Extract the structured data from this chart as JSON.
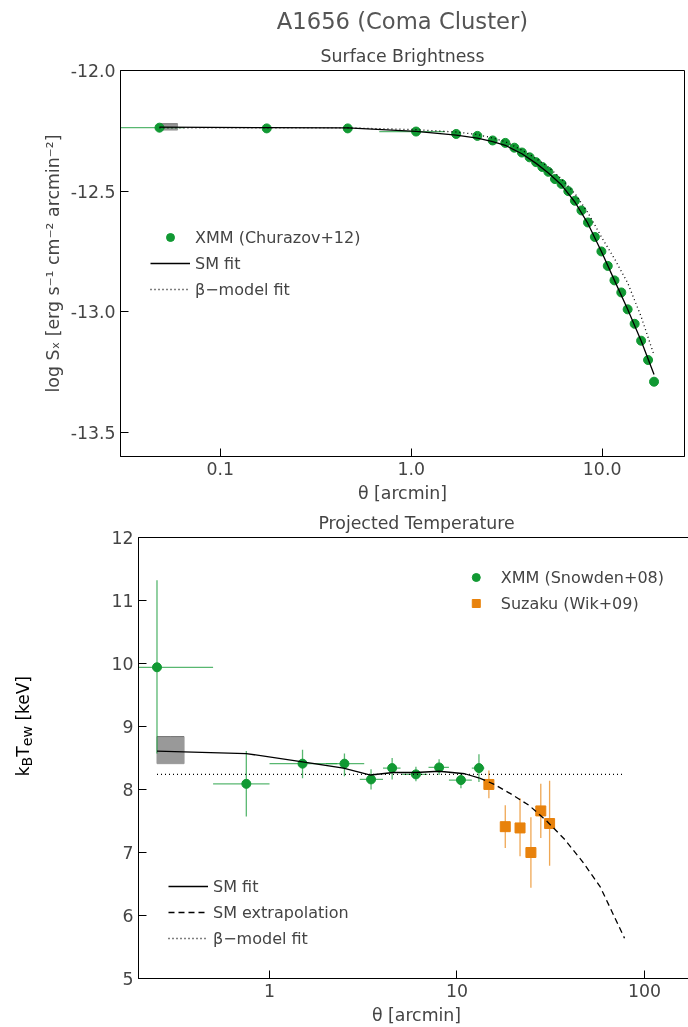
{
  "chart_data": [
    {
      "type": "scatter",
      "title": "A1656 (Coma Cluster)",
      "subtitle": "Surface Brightness",
      "xlabel": "θ [arcmin]",
      "ylabel": "log Sₓ [erg s⁻¹ cm⁻² arcmin⁻²]",
      "log": "x",
      "xlim": [
        0.03,
        27
      ],
      "ylim": [
        -13.6,
        -12.0
      ],
      "xticks": [
        0.1,
        {
          "value": 1,
          "label": "1.0"
        },
        {
          "value": 10,
          "label": "10.0"
        }
      ],
      "yticks": [
        {
          "value": -12,
          "label": "-12.0"
        },
        -12.5,
        {
          "value": -13,
          "label": "-13.0"
        },
        -13.5
      ],
      "grid": false,
      "legend": "left",
      "series": [
        {
          "type": "bar",
          "color": "#999999",
          "x": [
            0.0538
          ],
          "base": [
            -12.247
          ],
          "values": [
            0.026
          ],
          "xerrors": [
            [
              0.0485,
              0.0597
            ]
          ]
        },
        {
          "name": "XMM (Churazov+12)",
          "color": "#119933",
          "marker": "circle",
          "x": [
            0.048,
            0.175,
            0.465,
            1.06,
            1.72,
            2.22,
            2.67,
            3.11,
            3.47,
            3.8,
            4.17,
            4.51,
            4.86,
            5.23,
            5.66,
            6.13,
            6.65,
            7.2,
            7.79,
            8.43,
            9.16,
            9.91,
            10.7,
            11.6,
            12.6,
            13.6,
            14.8,
            16.0,
            17.4,
            18.7
          ],
          "values": [
            -12.237,
            -12.24,
            -12.24,
            -12.253,
            -12.263,
            -12.271,
            -12.29,
            -12.3,
            -12.32,
            -12.34,
            -12.36,
            -12.38,
            -12.4,
            -12.42,
            -12.45,
            -12.47,
            -12.5,
            -12.54,
            -12.58,
            -12.63,
            -12.69,
            -12.75,
            -12.81,
            -12.87,
            -12.92,
            -12.99,
            -13.05,
            -13.12,
            -13.2,
            -13.29
          ],
          "xerrors": [
            [
              0.03,
              0.065
            ],
            null,
            null,
            [
              0.68,
              1.5
            ],
            null,
            null,
            null,
            null,
            null,
            null,
            null,
            null,
            null,
            null,
            null,
            null,
            null,
            null,
            null,
            null,
            null,
            null,
            null,
            null,
            null,
            null,
            null,
            null,
            null,
            null
          ]
        },
        {
          "type": "line",
          "name": "SM fit",
          "color": "#000000",
          "line_style": "solid",
          "x": [
            0.048,
            0.175,
            0.465,
            1.06,
            1.72,
            2.22,
            2.67,
            3.11,
            3.8,
            4.51,
            5.23,
            6.13,
            7.2,
            8.43,
            9.91,
            11.6,
            13.6,
            16.0,
            18.7
          ],
          "values": [
            -12.235,
            -12.237,
            -12.238,
            -12.252,
            -12.268,
            -12.28,
            -12.295,
            -12.31,
            -12.345,
            -12.385,
            -12.425,
            -12.475,
            -12.545,
            -12.635,
            -12.75,
            -12.87,
            -12.99,
            -13.12,
            -13.26
          ]
        },
        {
          "type": "line",
          "name": "β−model fit",
          "color": "#000000",
          "line_style": "dotted",
          "x": [
            0.048,
            0.175,
            0.465,
            1.06,
            1.72,
            2.22,
            2.67,
            3.11,
            3.8,
            4.51,
            5.23,
            6.13,
            7.2,
            8.43,
            9.91,
            11.6,
            13.6,
            16.0,
            18.7
          ],
          "values": [
            -12.238,
            -12.238,
            -12.238,
            -12.245,
            -12.255,
            -12.265,
            -12.28,
            -12.295,
            -12.33,
            -12.365,
            -12.4,
            -12.45,
            -12.51,
            -12.59,
            -12.69,
            -12.78,
            -12.88,
            -13.02,
            -13.18
          ]
        }
      ]
    },
    {
      "type": "scatter",
      "title": "Projected Temperature",
      "xlabel": "θ [arcmin]",
      "ylabel": "k$_{B}$T$_{ew}$ [keV]",
      "log": "x",
      "xlim": [
        0.2,
        185
      ],
      "ylim": [
        5,
        12
      ],
      "xticks": [
        1,
        10,
        100
      ],
      "yticks": [
        5,
        6,
        7,
        8,
        9,
        10,
        11,
        12
      ],
      "grid": false,
      "legend": [
        "top right",
        "bottom left"
      ],
      "series": [
        {
          "type": "bar",
          "color": "#999999",
          "x": [
            0.296
          ],
          "base": [
            8.41
          ],
          "values": [
            0.43
          ],
          "xerrors": [
            [
              0.251,
              0.35
            ]
          ]
        },
        {
          "name": "XMM (Snowden+08)",
          "color": "#119933",
          "marker": "circle",
          "x": [
            0.251,
            0.752,
            1.5,
            2.51,
            3.48,
            4.51,
            6.04,
            8.03,
            10.5,
            13.1
          ],
          "values": [
            9.94,
            8.09,
            8.41,
            8.41,
            8.16,
            8.34,
            8.24,
            8.35,
            8.15,
            8.34
          ],
          "errors": [
            [
              8.57,
              11.32
            ],
            [
              7.57,
              8.61
            ],
            [
              8.18,
              8.63
            ],
            [
              8.21,
              8.57
            ],
            [
              8.0,
              8.32
            ],
            [
              8.16,
              8.5
            ],
            [
              8.13,
              8.36
            ],
            [
              8.23,
              8.48
            ],
            [
              8.02,
              8.26
            ],
            [
              8.12,
              8.56
            ]
          ],
          "xerrors": [
            [
              0.2,
              0.5
            ],
            [
              0.5,
              1.0
            ],
            [
              1.0,
              2.3
            ],
            [
              2.0,
              3.2
            ],
            [
              3.03,
              4.03
            ],
            [
              4.03,
              5.0
            ],
            [
              5.1,
              6.95
            ],
            [
              7.05,
              9.06
            ],
            [
              9.06,
              12.0
            ],
            [
              12.0,
              14.0
            ]
          ]
        },
        {
          "name": "Suzaku (Wik+09)",
          "color": "#e8820c",
          "marker": "square",
          "x": [
            14.8,
            18.1,
            21.7,
            24.8,
            28.0,
            31.2
          ],
          "values": [
            8.08,
            7.41,
            7.39,
            7.0,
            7.66,
            7.46
          ],
          "errors": [
            [
              7.86,
              8.3
            ],
            [
              7.07,
              7.75
            ],
            [
              6.94,
              7.86
            ],
            [
              6.44,
              7.56
            ],
            [
              7.23,
              8.09
            ],
            [
              6.79,
              8.14
            ]
          ]
        },
        {
          "type": "line",
          "name": "SM fit",
          "color": "#000000",
          "line_style": "solid",
          "x": [
            0.251,
            0.752,
            1.5,
            2.48,
            3.46,
            4.58,
            6.04,
            8.03,
            11.0,
            13.2
          ],
          "values": [
            8.61,
            8.57,
            8.44,
            8.34,
            8.23,
            8.27,
            8.27,
            8.29,
            8.25,
            8.18
          ]
        },
        {
          "type": "line",
          "name": "SM extrapolation",
          "color": "#000000",
          "line_style": "dashed",
          "x": [
            13.2,
            15.6,
            19.4,
            24.2,
            30.1,
            37.5,
            46.6,
            58.0,
            78.3
          ],
          "values": [
            8.18,
            8.09,
            7.93,
            7.75,
            7.5,
            7.21,
            6.86,
            6.46,
            5.64
          ]
        },
        {
          "type": "line",
          "name": "β−model fit",
          "color": "#000000",
          "line_style": "dotted",
          "x": [
            0.251,
            76
          ],
          "values": [
            8.24,
            8.24
          ]
        }
      ]
    }
  ]
}
